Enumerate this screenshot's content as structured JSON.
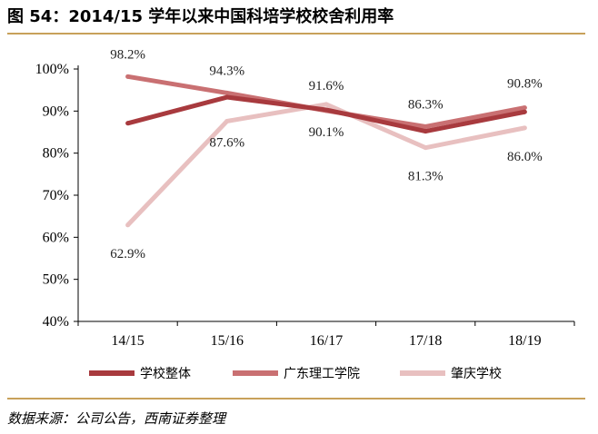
{
  "title": "图 54：2014/15 学年以来中国科培学校校舍利用率",
  "source": "数据来源：公司公告，西南证券整理",
  "chart_data": {
    "type": "line",
    "categories": [
      "14/15",
      "15/16",
      "16/17",
      "17/18",
      "18/19"
    ],
    "ylim": [
      0.4,
      1.0
    ],
    "yticks": [
      0.4,
      0.5,
      0.6,
      0.7,
      0.8,
      0.9,
      1.0
    ],
    "ytick_labels": [
      "40%",
      "50%",
      "60%",
      "70%",
      "80%",
      "90%",
      "100%"
    ],
    "grid": false,
    "legend_position": "bottom",
    "series": [
      {
        "name": "学校整体",
        "color": "#a83a3e",
        "values": [
          0.871,
          0.933,
          0.903,
          0.852,
          0.898
        ],
        "labels": [
          "",
          "",
          "",
          "",
          ""
        ]
      },
      {
        "name": "广东理工学院",
        "color": "#c97072",
        "values": [
          0.982,
          0.943,
          0.901,
          0.863,
          0.908
        ],
        "labels": [
          "98.2%",
          "94.3%",
          "90.1%",
          "86.3%",
          "90.8%"
        ]
      },
      {
        "name": "肇庆学校",
        "color": "#e8c0c0",
        "values": [
          0.629,
          0.876,
          0.916,
          0.813,
          0.86
        ],
        "labels": [
          "62.9%",
          "87.6%",
          "91.6%",
          "81.3%",
          "86.0%"
        ]
      }
    ]
  }
}
